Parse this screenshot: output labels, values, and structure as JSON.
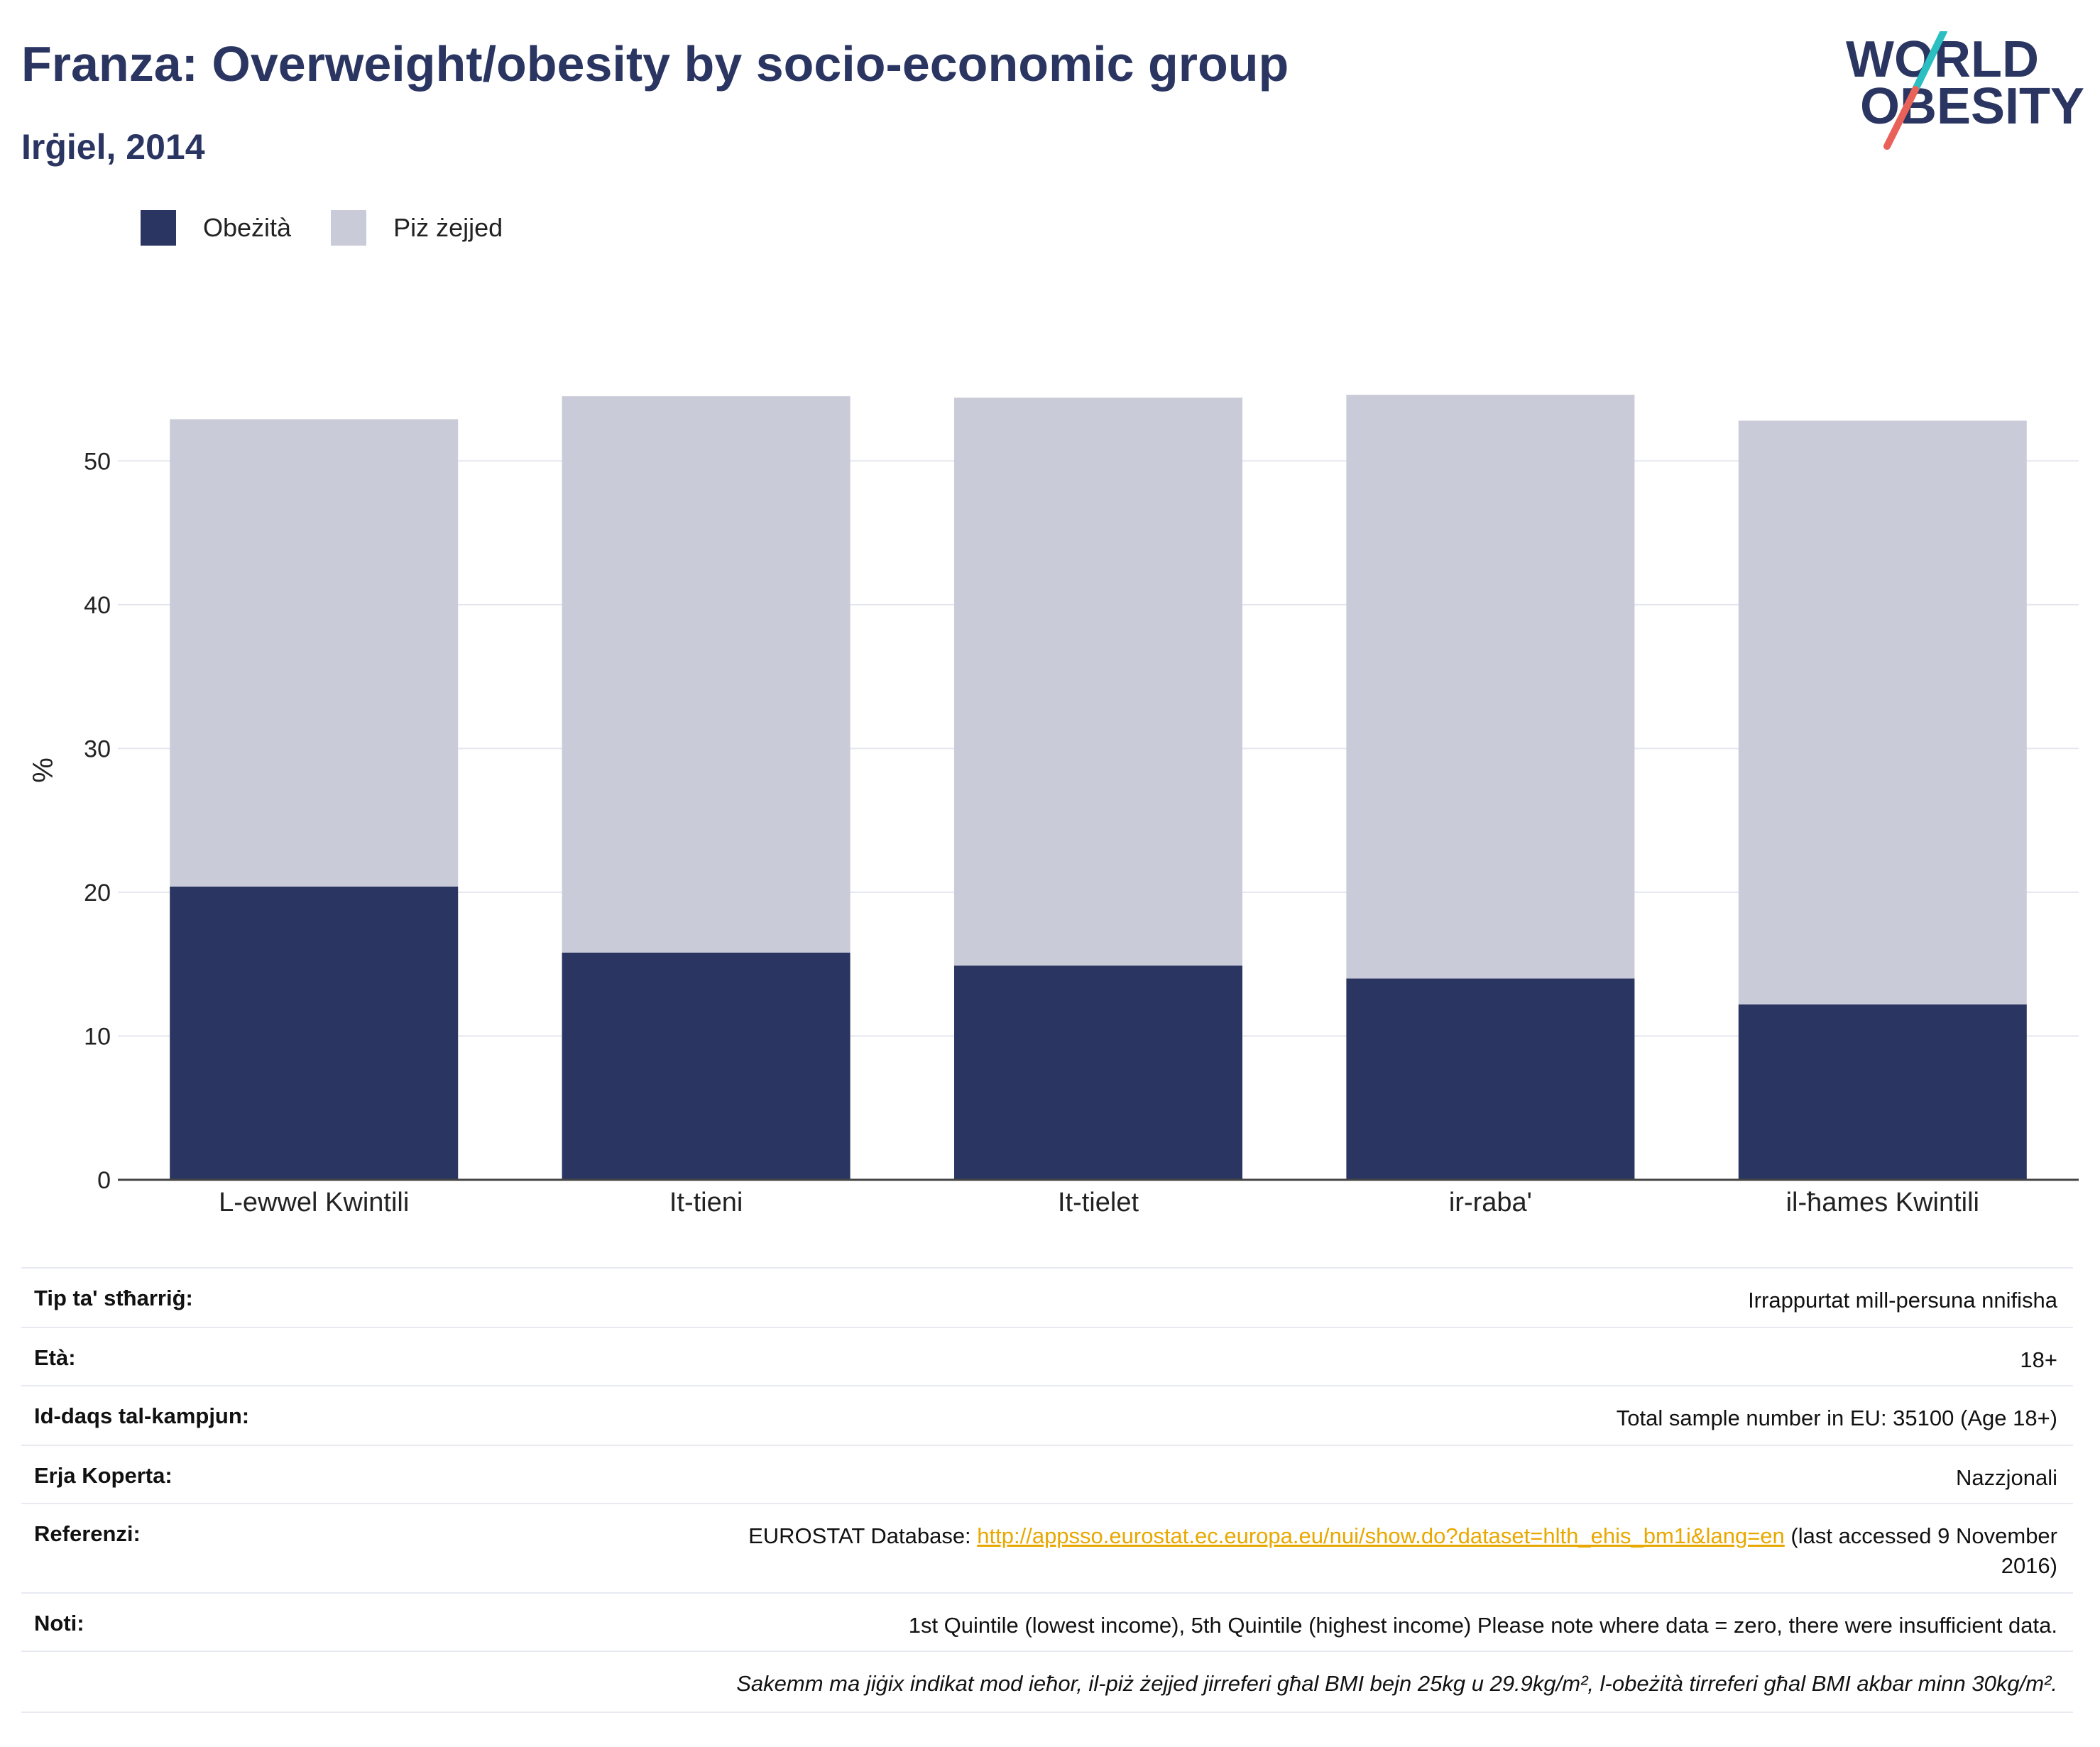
{
  "header": {
    "title": "Franza: Overweight/obesity by socio-economic group",
    "subtitle": "Irġiel, 2014"
  },
  "logo": {
    "line1": "WORLD",
    "line2": "OBESITY",
    "colors": {
      "text": "#2a3561",
      "slash_top": "#2bbfc1",
      "slash_bottom": "#e8625a"
    }
  },
  "legend": {
    "items": [
      {
        "label": "Obeżità",
        "color": "#2a3561"
      },
      {
        "label": "Piż żejjed",
        "color": "#c9ccd8"
      }
    ]
  },
  "chart_data": {
    "type": "bar",
    "stacked": true,
    "categories": [
      "L-ewwel Kwintili",
      "It-tieni",
      "It-tielet",
      "ir-raba'",
      "il-ħames Kwintili"
    ],
    "series": [
      {
        "name": "Obeżità",
        "color": "#2a3561",
        "values": [
          20.4,
          15.8,
          14.9,
          14.0,
          12.2
        ]
      },
      {
        "name": "Piż żejjed",
        "color": "#c9ccd8",
        "values": [
          32.5,
          38.7,
          39.5,
          40.6,
          40.6
        ]
      }
    ],
    "ylabel": "%",
    "xlabel": "",
    "ylim": [
      0,
      55
    ],
    "yticks": [
      0,
      10,
      20,
      30,
      40,
      50
    ],
    "grid": true,
    "legend_position": "top-left"
  },
  "info": {
    "rows": [
      {
        "key": "Tip ta' stħarriġ:",
        "value": "Irrappurtat mill-persuna nnifisha"
      },
      {
        "key": "Età:",
        "value": "18+"
      },
      {
        "key": "Id-daqs tal-kampjun:",
        "value": "Total sample number in EU: 35100 (Age 18+)"
      },
      {
        "key": "Erja Koperta:",
        "value": "Nazzjonali"
      }
    ],
    "reference": {
      "key": "Referenzi:",
      "prefix": "EUROSTAT Database: ",
      "link": "http://appsso.eurostat.ec.europa.eu/nui/show.do?dataset=hlth_ehis_bm1i&lang=en",
      "suffix_line1": " (last accessed 9 November",
      "suffix_line2": "2016)"
    },
    "notes": {
      "key": "Noti:",
      "value": "1st Quintile (lowest income), 5th Quintile (highest income) Please note where data = zero, there were insufficient data."
    },
    "definition": "Sakemm ma jiġix indikat mod ieħor, il-piż żejjed jirreferi għal BMI bejn 25kg u 29.9kg/m², l-obeżità tirreferi għal BMI akbar minn 30kg/m²."
  }
}
